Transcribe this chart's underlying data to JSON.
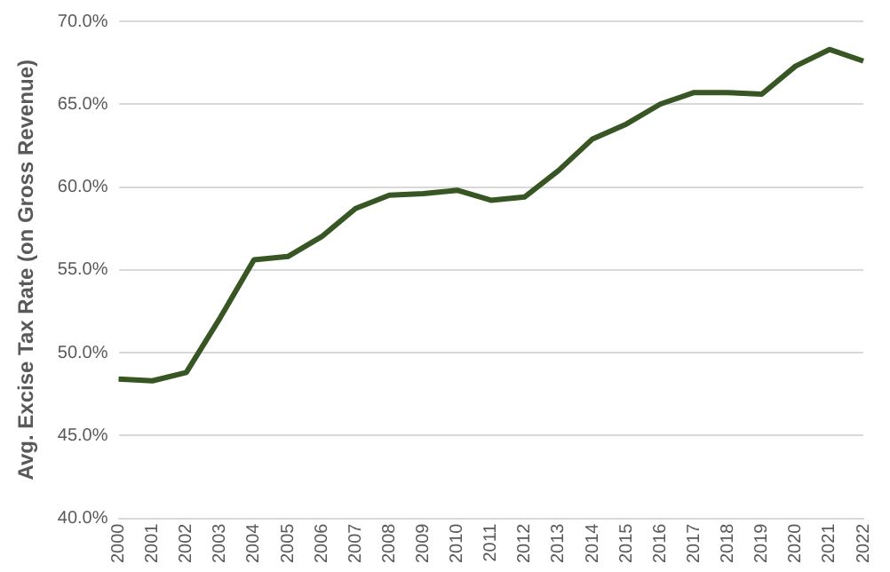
{
  "chart_data": {
    "type": "line",
    "ylabel": "Avg. Excise Tax Rate (on Gross Revenue)",
    "categories": [
      "2000",
      "2001",
      "2002",
      "2003",
      "2004",
      "2005",
      "2006",
      "2007",
      "2008",
      "2009",
      "2010",
      "2011",
      "2012",
      "2013",
      "2014",
      "2015",
      "2016",
      "2017",
      "2018",
      "2019",
      "2020",
      "2021",
      "2022"
    ],
    "series": [
      {
        "color": "#375623",
        "values": [
          48.4,
          48.3,
          48.8,
          52.1,
          55.6,
          55.8,
          57.0,
          58.7,
          59.5,
          59.6,
          59.8,
          59.2,
          59.4,
          61.0,
          62.9,
          63.8,
          65.0,
          65.7,
          65.7,
          65.6,
          67.3,
          68.3,
          67.6
        ]
      }
    ],
    "ylim": [
      40,
      70
    ],
    "yticks": [
      {
        "value": 40,
        "label": "40.0%"
      },
      {
        "value": 45,
        "label": "45.0%"
      },
      {
        "value": 50,
        "label": "50.0%"
      },
      {
        "value": 55,
        "label": "55.0%"
      },
      {
        "value": 60,
        "label": "60.0%"
      },
      {
        "value": 65,
        "label": "65.0%"
      },
      {
        "value": 70,
        "label": "70.0%"
      }
    ],
    "grid": "y",
    "legend": false,
    "marker": "none",
    "line_style": "solid"
  }
}
